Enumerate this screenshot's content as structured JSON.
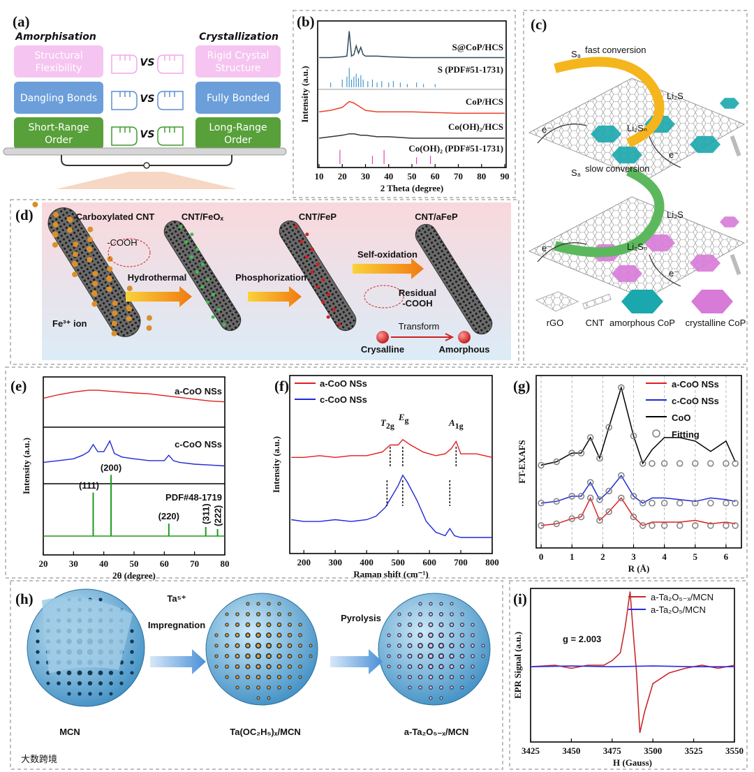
{
  "watermark": "大数跨境",
  "panels": {
    "a": {
      "label": "(a)",
      "left_title": "Amorphisation",
      "right_title": "Crystallization",
      "rows": [
        {
          "left": [
            "Structural",
            "Flexibility"
          ],
          "vs": "VS",
          "right": [
            "Rigid Crystal",
            "Structure"
          ]
        },
        {
          "left": [
            "Dangling Bonds"
          ],
          "vs": "VS",
          "right": [
            "Fully Bonded"
          ]
        },
        {
          "left": [
            "Short-Range",
            "Order"
          ],
          "vs": "VS",
          "right": [
            "Long-Range",
            "Order"
          ]
        }
      ]
    },
    "b": {
      "label": "(b)",
      "type": "line",
      "x_label": "2 Theta (degree)",
      "y_label": "Intensity (a.u.)",
      "xlim": [
        9.4,
        90.6
      ],
      "xticks": [
        10,
        20,
        30,
        40,
        50,
        60,
        70,
        80,
        90
      ],
      "ylim": [
        0,
        100
      ],
      "series": [
        {
          "name": "S@CoP/HCS",
          "color": "#2d4b5a",
          "x": [
            10,
            15,
            20,
            22,
            23,
            24,
            25,
            26,
            27,
            28,
            29,
            30,
            35,
            40,
            50,
            60,
            70,
            90
          ],
          "values": [
            75,
            75,
            75.5,
            76,
            93,
            76,
            77,
            83,
            78,
            82,
            77,
            76,
            76,
            75.5,
            75,
            75,
            75,
            75
          ]
        },
        {
          "name": "CoP/HCS",
          "color": "#e8432a",
          "x": [
            10,
            15,
            20,
            23,
            25,
            28,
            30,
            35,
            40,
            50,
            60,
            70,
            80,
            90
          ],
          "values": [
            38,
            39,
            41,
            45,
            44,
            41,
            39,
            38,
            38,
            38,
            37.5,
            37,
            37,
            37
          ]
        },
        {
          "name": "Co(OH)₂/HCS",
          "color": "#333333",
          "x": [
            10,
            15,
            20,
            23,
            25,
            28,
            30,
            35,
            40,
            50,
            60,
            70,
            80,
            90
          ],
          "values": [
            20,
            21,
            22,
            23,
            23,
            22,
            22,
            21,
            21,
            20,
            20,
            20,
            20,
            20
          ]
        }
      ],
      "sticks": [
        {
          "name": "S (PDF#51-1731)",
          "color": "#3a8fc8",
          "x": [
            15,
            20,
            22,
            23,
            24,
            25,
            26,
            27,
            28,
            29,
            31,
            33,
            35,
            37,
            40,
            42,
            45,
            48,
            52,
            55,
            60
          ],
          "values": [
            58,
            60,
            62,
            68,
            60,
            62,
            64,
            61,
            63,
            60,
            59,
            60,
            58,
            59,
            58,
            59,
            58,
            57,
            58,
            57,
            57
          ]
        },
        {
          "name": "Co(OH)₂ (PDF#51-1731)",
          "color": "#d63ab4",
          "x": [
            19,
            33,
            38,
            52,
            58
          ],
          "values": [
            12,
            8,
            12,
            7,
            8
          ]
        }
      ]
    },
    "c": {
      "label": "(c)",
      "top": {
        "s8": "S₈",
        "text": "fast conversion",
        "product": "Li₂S",
        "intermediate": "Li₂Sₙ",
        "electrons": [
          "e⁻",
          "e⁻"
        ]
      },
      "bottom": {
        "s8": "S₈",
        "text": "slow conversion",
        "product": "Li₂S",
        "intermediate": "Li₂Sₙ",
        "electrons": [
          "e⁻",
          "e⁻"
        ]
      },
      "legend": [
        "rGO",
        "CNT",
        "amorphous CoP",
        "crystalline CoP"
      ]
    },
    "d": {
      "label": "(d)",
      "titles": [
        "Carboxylated CNT",
        "CNT/FeOₓ",
        "CNT/FeP",
        "CNT/aFeP"
      ],
      "cooh": "-COOH",
      "ion": "Fe³⁺ ion",
      "steps": [
        "Hydrothermal",
        "Phosphorization",
        "Self-oxidation"
      ],
      "residual": [
        "Residual",
        "-COOH"
      ],
      "transform": "Transform",
      "from": "Crysalline",
      "to": "Amorphous"
    },
    "e": {
      "label": "(e)",
      "type": "line",
      "x_label": "2θ (degree)",
      "y_label": "Intensity (a.u.)",
      "xlim": [
        20,
        80
      ],
      "xticks": [
        20,
        30,
        40,
        50,
        60,
        70,
        80
      ],
      "ylim": [
        0,
        100
      ],
      "series": [
        {
          "name": "a-CoO NSs",
          "color": "#e01e1e",
          "x": [
            20,
            25,
            30,
            35,
            38,
            42,
            46,
            50,
            55,
            60,
            65,
            70,
            75,
            80
          ],
          "values": [
            88,
            90,
            91.5,
            92.5,
            92.5,
            92,
            91.5,
            91,
            90.5,
            89.5,
            88.5,
            87.5,
            86.5,
            86
          ]
        },
        {
          "name": "c-CoO NSs",
          "color": "#1e28d8",
          "x": [
            20,
            25,
            30,
            33,
            35,
            36.5,
            38,
            40,
            42,
            43.5,
            46,
            50,
            55,
            60,
            61.5,
            63,
            65,
            70,
            75,
            80
          ],
          "values": [
            52,
            53,
            54,
            56,
            58,
            62,
            58,
            58,
            64,
            57,
            55,
            54,
            53,
            53,
            56,
            53,
            52,
            51,
            50.5,
            50
          ]
        }
      ],
      "sticks": {
        "name": "PDF#48-1719",
        "color": "#1e9a1e",
        "x": [
          36.5,
          42.4,
          61.5,
          73.7,
          77.6
        ],
        "values": [
          35,
          45,
          17.6,
          15.7,
          14.5
        ],
        "labels": [
          "(111)",
          "(200)",
          "(220)",
          "(311)",
          "(222)"
        ]
      }
    },
    "f": {
      "label": "(f)",
      "type": "line",
      "x_label": "Raman shift (cm⁻¹)",
      "y_label": "Intensity (a.u.)",
      "xlim": [
        155,
        800
      ],
      "xticks": [
        200,
        300,
        400,
        500,
        600,
        700,
        800
      ],
      "ylim": [
        0,
        100
      ],
      "series": [
        {
          "name": "a-CoO NSs",
          "color": "#e01e1e",
          "x": [
            160,
            200,
            250,
            300,
            350,
            400,
            450,
            475,
            500,
            515,
            540,
            580,
            620,
            650,
            670,
            685,
            700,
            750,
            800
          ],
          "values": [
            54,
            54,
            55,
            54,
            55,
            55,
            57,
            61,
            61,
            64,
            61,
            57,
            55,
            56,
            59,
            63,
            56,
            56,
            54
          ],
          "peaks": [
            475,
            515,
            685
          ]
        },
        {
          "name": "c-CoO NSs",
          "color": "#1e28d8",
          "x": [
            160,
            200,
            250,
            300,
            350,
            400,
            430,
            460,
            480,
            500,
            515,
            530,
            560,
            590,
            620,
            650,
            665,
            680,
            700,
            750,
            800
          ],
          "values": [
            19,
            18,
            18,
            19,
            18,
            19,
            21,
            26,
            32,
            38,
            44,
            40,
            30,
            18,
            12,
            10,
            14,
            10,
            9,
            9,
            9
          ],
          "peaks": [
            465,
            515,
            665
          ]
        }
      ],
      "annotations": [
        {
          "main": "T",
          "sub": "2g"
        },
        {
          "main": "E",
          "sub": "g"
        },
        {
          "main": "A",
          "sub": "1g"
        }
      ]
    },
    "g": {
      "label": "(g)",
      "type": "line",
      "x_label": "R (Å)",
      "y_label": "FT-EXAFS",
      "xlim": [
        -0.16,
        6.5
      ],
      "xticks": [
        0,
        1,
        2,
        3,
        4,
        5,
        6
      ],
      "ylim": [
        0,
        100
      ],
      "grid": true,
      "series": [
        {
          "name": "a-CoO NSs",
          "color": "#e01e1e",
          "x": [
            0,
            0.5,
            1,
            1.3,
            1.6,
            1.9,
            2.2,
            2.6,
            3,
            3.3,
            3.6,
            4,
            4.5,
            5,
            5.5,
            6,
            6.3
          ],
          "values": [
            13,
            14,
            17,
            18,
            29,
            16,
            21,
            29,
            18,
            13,
            15,
            15,
            15,
            16,
            14,
            15,
            14
          ]
        },
        {
          "name": "c-CoO NSs",
          "color": "#1e28d8",
          "x": [
            0,
            0.5,
            1,
            1.3,
            1.6,
            1.9,
            2.2,
            2.6,
            3,
            3.3,
            3.6,
            4,
            4.5,
            5,
            5.5,
            6,
            6.3
          ],
          "values": [
            26,
            27,
            30,
            30,
            38,
            28,
            33,
            42,
            30,
            26,
            29,
            29,
            28,
            27,
            29,
            28,
            27
          ]
        },
        {
          "name": "CoO",
          "color": "#000000",
          "x": [
            0,
            0.5,
            1,
            1.3,
            1.6,
            1.9,
            2.2,
            2.6,
            3,
            3.3,
            3.6,
            4,
            4.5,
            5,
            5.5,
            6,
            6.3
          ],
          "values": [
            48,
            50,
            55,
            55,
            64,
            52,
            70,
            93,
            65,
            49,
            57,
            64,
            64,
            62,
            56,
            62,
            50
          ]
        }
      ],
      "fitting": {
        "name": "Fitting",
        "color": "#808080",
        "x": [
          0,
          0.5,
          1,
          1.3,
          1.6,
          1.9,
          2.2,
          2.6,
          3,
          3.3,
          3.6,
          4,
          4.5,
          5,
          5.5,
          6,
          6.3
        ],
        "curves": [
          [
            13,
            14,
            17,
            18,
            29,
            16,
            21,
            29,
            18,
            13,
            13,
            13,
            13,
            13,
            13,
            13,
            13
          ],
          [
            26,
            27,
            30,
            30,
            38,
            28,
            33,
            42,
            30,
            26,
            26,
            26,
            26,
            26,
            26,
            26,
            26
          ],
          [
            48,
            50,
            55,
            55,
            64,
            52,
            70,
            93,
            65,
            49,
            49,
            49,
            49,
            49,
            49,
            49,
            49
          ]
        ]
      }
    },
    "h": {
      "label": "(h)",
      "ion": "Ta⁵⁺",
      "step1": "Impregnation",
      "step2": "Pyrolysis",
      "names": [
        "MCN",
        "Ta(OC₂H₅)ₓ/MCN",
        "a-Ta₂O₅₋ₓ/MCN"
      ]
    },
    "i": {
      "label": "(i)",
      "type": "line",
      "x_label": "H (Gauss)",
      "y_label": "EPR Signal (a.u.)",
      "xlim": [
        3425,
        3550
      ],
      "xticks": [
        3425,
        3450,
        3475,
        3500,
        3525,
        3550
      ],
      "ylim": [
        0,
        100
      ],
      "annotation": "g = 2.003",
      "series": [
        {
          "name": "a-Ta₂O₅₋ₓ/MCN",
          "color": "#c8282a",
          "x": [
            3425,
            3440,
            3450,
            3460,
            3470,
            3475,
            3480,
            3483,
            3486,
            3488,
            3490,
            3492,
            3495,
            3500,
            3510,
            3520,
            3530,
            3540,
            3550
          ],
          "values": [
            49,
            50,
            48,
            50,
            50,
            53,
            58,
            75,
            98,
            70,
            45,
            6,
            20,
            38,
            45,
            48,
            50,
            48,
            50
          ]
        },
        {
          "name": "a-Ta₂O₅/MCN",
          "color": "#2a2ae0",
          "x": [
            3425,
            3450,
            3475,
            3500,
            3525,
            3550
          ],
          "values": [
            49,
            49.5,
            49,
            49.5,
            49,
            49
          ]
        }
      ]
    }
  }
}
